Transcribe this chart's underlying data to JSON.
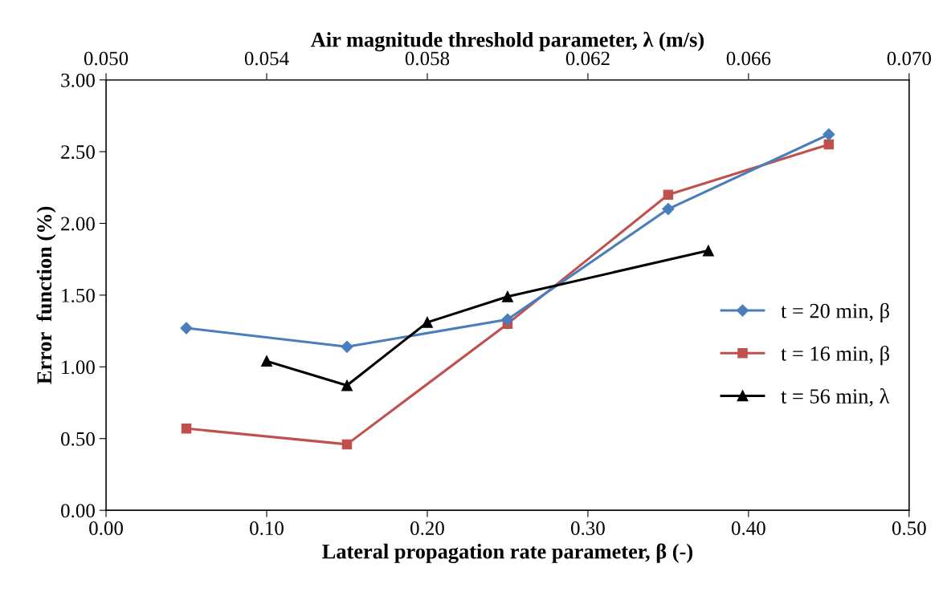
{
  "chart_data": {
    "type": "line",
    "xlabel": "Lateral propagation rate parameter, β (-)",
    "ylabel": "Error  function (%)",
    "x2label": "Air magnitude threshold parameter, λ (m/s)",
    "xlim": [
      0,
      0.5
    ],
    "xticks": [
      {
        "value": 0,
        "label": "0.00"
      },
      {
        "value": 0.1,
        "label": "0.10"
      },
      {
        "value": 0.2,
        "label": "0.20"
      },
      {
        "value": 0.3,
        "label": "0.30"
      },
      {
        "value": 0.4,
        "label": "0.40"
      },
      {
        "value": 0.5,
        "label": "0.50"
      }
    ],
    "x2lim": [
      0.05,
      0.07
    ],
    "x2ticks": [
      {
        "value": 0.05,
        "label": "0.050"
      },
      {
        "value": 0.054,
        "label": "0.054"
      },
      {
        "value": 0.058,
        "label": "0.058"
      },
      {
        "value": 0.062,
        "label": "0.062"
      },
      {
        "value": 0.066,
        "label": "0.066"
      },
      {
        "value": 0.07,
        "label": "0.070"
      }
    ],
    "ylim": [
      0,
      3
    ],
    "yticks": [
      {
        "value": 0,
        "label": "0.00"
      },
      {
        "value": 0.5,
        "label": "0.50"
      },
      {
        "value": 1,
        "label": "1.00"
      },
      {
        "value": 1.5,
        "label": "1.50"
      },
      {
        "value": 2,
        "label": "2.00"
      },
      {
        "value": 2.5,
        "label": "2.50"
      },
      {
        "value": 3,
        "label": "3.00"
      }
    ],
    "grid": false,
    "legend": "right",
    "series": [
      {
        "name": "t = 20 min, β",
        "color": "#4a7ebb",
        "marker": "diamond",
        "x": [
          0.05,
          0.15,
          0.25,
          0.35,
          0.45
        ],
        "values": [
          1.27,
          1.14,
          1.33,
          2.1,
          2.62
        ]
      },
      {
        "name": "t = 16 min, β",
        "color": "#c0504d",
        "marker": "square",
        "x": [
          0.05,
          0.15,
          0.25,
          0.35,
          0.45
        ],
        "values": [
          0.57,
          0.46,
          1.3,
          2.2,
          2.55
        ]
      },
      {
        "name": "t = 56 min, λ",
        "color": "#000000",
        "marker": "triangle",
        "axis": "x2",
        "x": [
          0.054,
          0.056,
          0.058,
          0.06,
          0.065
        ],
        "values": [
          1.04,
          0.87,
          1.31,
          1.49,
          1.81
        ]
      }
    ]
  }
}
